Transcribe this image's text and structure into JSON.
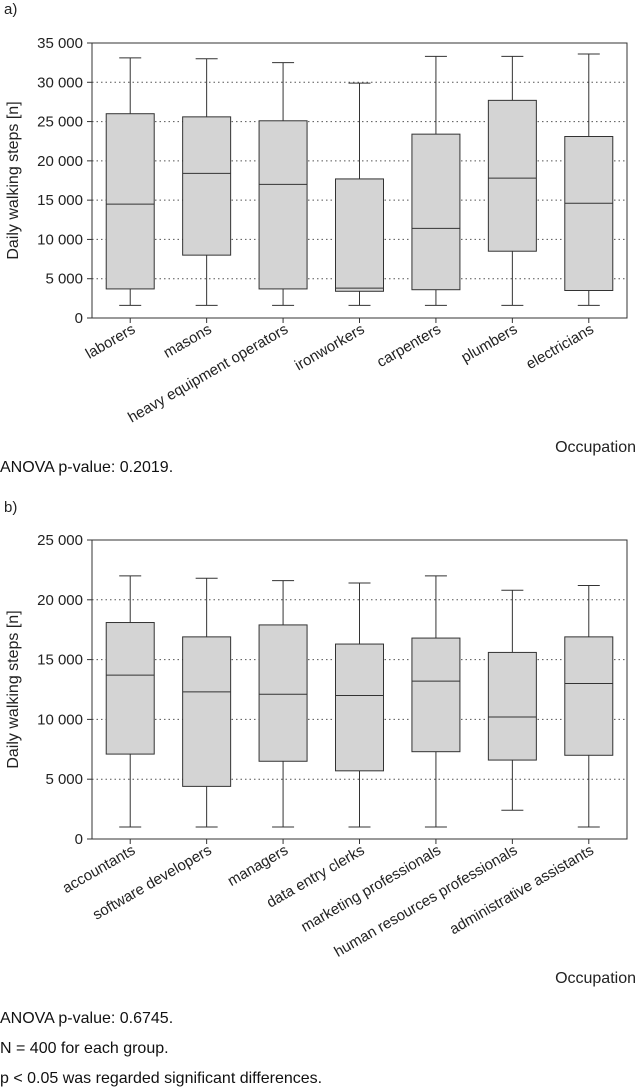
{
  "chart_data": [
    {
      "panel_label": "a)",
      "type": "box",
      "ylabel": "Daily walking steps [n]",
      "xlabel": "Occupation",
      "ylim": [
        0,
        35000
      ],
      "yticks": [
        0,
        5000,
        10000,
        15000,
        20000,
        25000,
        30000,
        35000
      ],
      "ytick_labels": [
        "0",
        "5 000",
        "10 000",
        "15 000",
        "20 000",
        "25 000",
        "30 000",
        "35 000"
      ],
      "grid": true,
      "categories": [
        "laborers",
        "masons",
        "heavy equipment operators",
        "ironworkers",
        "carpenters",
        "plumbers",
        "electricians"
      ],
      "boxes": [
        {
          "min": 1600,
          "q1": 3700,
          "median": 14500,
          "q3": 26000,
          "max": 33100
        },
        {
          "min": 1600,
          "q1": 8000,
          "median": 18400,
          "q3": 25600,
          "max": 33000
        },
        {
          "min": 1600,
          "q1": 3700,
          "median": 17000,
          "q3": 25100,
          "max": 32500
        },
        {
          "min": 1600,
          "q1": 3400,
          "median": 3800,
          "q3": 17700,
          "max": 29900
        },
        {
          "min": 1600,
          "q1": 3600,
          "median": 11400,
          "q3": 23400,
          "max": 33300
        },
        {
          "min": 1600,
          "q1": 8500,
          "median": 17800,
          "q3": 27700,
          "max": 33300
        },
        {
          "min": 1600,
          "q1": 3500,
          "median": 14600,
          "q3": 23100,
          "max": 33600
        }
      ],
      "caption": "ANOVA p-value: 0.2019."
    },
    {
      "panel_label": "b)",
      "type": "box",
      "ylabel": "Daily walking steps [n]",
      "xlabel": "Occupation",
      "ylim": [
        0,
        25000
      ],
      "yticks": [
        0,
        5000,
        10000,
        15000,
        20000,
        25000
      ],
      "ytick_labels": [
        "0",
        "5 000",
        "10 000",
        "15 000",
        "20 000",
        "25 000"
      ],
      "grid": true,
      "categories": [
        "accountants",
        "software developers",
        "managers",
        "data entry clerks",
        "marketing professionals",
        "human resources professionals",
        "administrative assistants"
      ],
      "boxes": [
        {
          "min": 1000,
          "q1": 7100,
          "median": 13700,
          "q3": 18100,
          "max": 22000
        },
        {
          "min": 1000,
          "q1": 4400,
          "median": 12300,
          "q3": 16900,
          "max": 21800
        },
        {
          "min": 1000,
          "q1": 6500,
          "median": 12100,
          "q3": 17900,
          "max": 21600
        },
        {
          "min": 1000,
          "q1": 5700,
          "median": 12000,
          "q3": 16300,
          "max": 21400
        },
        {
          "min": 1000,
          "q1": 7300,
          "median": 13200,
          "q3": 16800,
          "max": 22000
        },
        {
          "min": 2400,
          "q1": 6600,
          "median": 10200,
          "q3": 15600,
          "max": 20800
        },
        {
          "min": 1000,
          "q1": 7000,
          "median": 13000,
          "q3": 16900,
          "max": 21200
        }
      ],
      "caption": "ANOVA p-value: 0.6745."
    }
  ],
  "footnotes": {
    "n_per_group": "N = 400 for each group.",
    "significance": "p < 0.05 was regarded significant differences."
  },
  "colors": {
    "box_fill": "#d4d4d4",
    "line": "#333333",
    "grid": "#555555"
  }
}
